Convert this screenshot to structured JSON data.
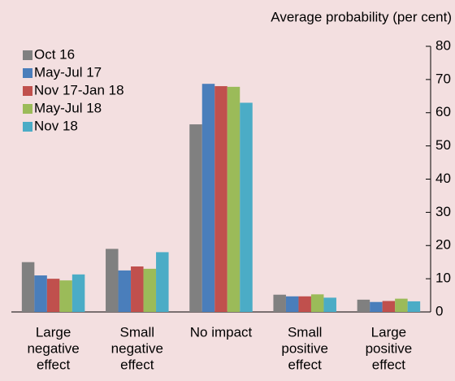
{
  "chart_data": {
    "type": "bar",
    "axis_label": "Average probability (per cent)",
    "categories": [
      [
        "Large",
        "negative",
        "effect"
      ],
      [
        "Small",
        "negative",
        "effect"
      ],
      [
        "No impact"
      ],
      [
        "Small",
        "positive",
        "effect"
      ],
      [
        "Large",
        "positive",
        "effect"
      ]
    ],
    "series": [
      {
        "name": "Oct 16",
        "color": "#808080",
        "values": [
          15,
          19,
          56.5,
          5.2,
          3.7
        ]
      },
      {
        "name": "May-Jul 17",
        "color": "#4a7ebb",
        "values": [
          11,
          12.5,
          68.7,
          4.7,
          3
        ]
      },
      {
        "name": "Nov 17-Jan 18",
        "color": "#c0504d",
        "values": [
          10,
          13.7,
          68,
          4.7,
          3.3
        ]
      },
      {
        "name": "May-Jul 18",
        "color": "#9bbb59",
        "values": [
          9.5,
          13,
          67.8,
          5.3,
          4
        ]
      },
      {
        "name": "Nov 18",
        "color": "#4bacc6",
        "values": [
          11.3,
          18,
          63,
          4.3,
          3.2
        ]
      }
    ],
    "ylim": [
      0,
      80
    ],
    "yticks": [
      0,
      10,
      20,
      30,
      40,
      50,
      60,
      70,
      80
    ],
    "legend": "top-left"
  }
}
